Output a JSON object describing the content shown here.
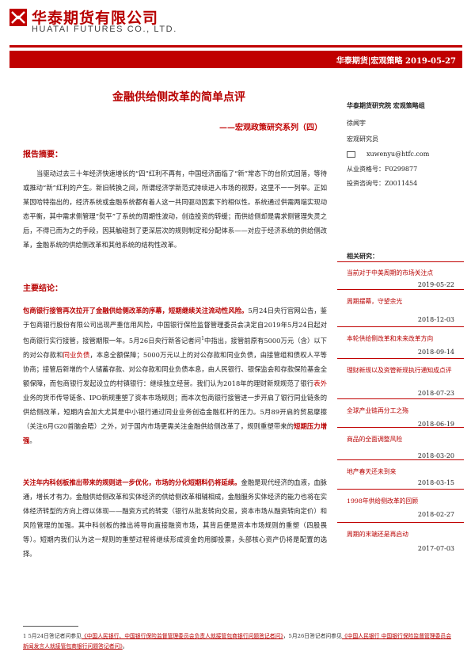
{
  "header": {
    "company_cn": "华泰期货有限公司",
    "company_en": "HUATAI FUTURES CO., LTD.",
    "band_text": "华泰期货|宏观策略   2019-05-27"
  },
  "title": "金融供给侧改革的简单点评",
  "subtitle": "——宏观政策研究系列（四）",
  "summary": {
    "heading": "报告摘要：",
    "text": "当驱动过去三十年经济快速增长的“四”红利不再有，中国经济面临了“新”常态下的台阶式回落，等待或推动“新”红利的产生。新旧转换之间，所谓经济学新范式持续进入市场的视野，这里不一一列举。正如某因哈特指出的，经济系统或金融系统都有着人这一共同驱动因素下的相似性。系统通过供需两端实现动态平衡，其中需求侧管理“熨平”了系统的周期性波动，创造投资的转缓；而供给侧却是需求侧管理失灵之后，不得已而为之的手段，因其触碰到了更深层次的规则制定和分配体系——对应于经济系统的供给侧改革，金融系统的供给侧改革和其他系统的结构性改革。"
  },
  "conclusion": {
    "heading": "主要结论：",
    "p1_bold": "包商银行接管再次拉开了金融供给侧改革的序幕，短期继续关注流动性风险。",
    "p1_a": "5月24日央行官网公告，鉴于包商银行股份有限公司出现严重信用风险，中国银行保险监督管理委员会决定自2019年5月24日起对包商银行实行接管，接管期限一年。5月26日央行新答记者问",
    "p1_sup": "1",
    "p1_b": "中指出，接管前原有5000万元（含）以下的对公存款和",
    "p1_red1": "同业负债",
    "p1_c": "，本息全额保障；5000万元以上的对公存款和同业负债，由接管组和债权人平等协商；接管后新增的个人储蓄存款、对公存款和同业负债本息，由人民银行、银保监会和存款保险基金全额保障，而包商银行发起设立的村镇银行：继续独立经营。我们认为2018年的理财新规规范了银行",
    "p1_red2": "表外",
    "p1_d": "业务的货币传导链条、IPO新规重塑了资本市场规则；而本次包商银行接管进一步开启了银行同业链条的供给侧改革，短期内会加大尤其是中小银行通过同业业务创造金融杠杆的压力。5月89开启的贸易摩擦（关注6月G20首脑会晤）之外，对于国内市场更需关注金融供给侧改革了，规则重塑带来的",
    "p1_bold2": "短期压力增强",
    "p1_e": "。",
    "p2_bold": "关注年内科创板推出带来的规则进一步优化，市场的分化短期料仍将延续。",
    "p2_text": "金融是现代经济的血液，血脉通，增长才有力。金融供给侧改革和实体经济的供给侧改革相辅相成，金融服务实体经济的能力也将在实体经济转型的方向上得以体现——融资方式的转变（银行从批发转向交易，资本市场从融资转向定价）和风险管理的加强。其中科创板的推出将导向直接融资市场，其背后便是资本市场规则的重塑（四股畏等）。短期内我们认为这一规则的重塑过程将继续形成资金的用脚投票，头部核心资产仍将是配置的选择。"
  },
  "author": {
    "institute": "华泰期货研究院  宏观策略组",
    "name": "徐闻宇",
    "role": "宏观研究员",
    "email": "xuwenyu@htfc.com",
    "license1": "从业资格号：F0299877",
    "license2": "投资咨询号：Z0011454"
  },
  "related": {
    "heading": "相关研究：",
    "items": [
      {
        "title": "当前对于中美周期的市场关注点",
        "date": "2019-05-22"
      },
      {
        "title": "周期摆幕，守望余光",
        "date": "2018-12-03"
      },
      {
        "title": "本轮供给侧改革和未来改革方向",
        "date": "2018-09-14"
      },
      {
        "title": "理财新规以及资管新规执行通知成点评",
        "date": "2018-07-23"
      },
      {
        "title": "全球产业链再分工之殇",
        "date": "2018-06-19"
      },
      {
        "title": "商品的全面调整风险",
        "date": "2018-03-20"
      },
      {
        "title": "地产春天还未到来",
        "date": "2018-03-15"
      },
      {
        "title": "1998年供给侧改革的回顾",
        "date": "2018-02-27"
      },
      {
        "title": "周期的末端还是再启动",
        "date": "2017-07-03"
      }
    ]
  },
  "footnote": {
    "a": "1 5月24日答记者问参见",
    "link1": "《中国人民银行、中国银行保险监督管理委员会负责人就接管包商银行问题答记者问》",
    "b": "，5月26日答记者问参见",
    "link2": "《中国人民银行 中国银行保险监督管理委员会新闻发言人就接管包商银行问题答记者问》",
    "c": "。"
  }
}
